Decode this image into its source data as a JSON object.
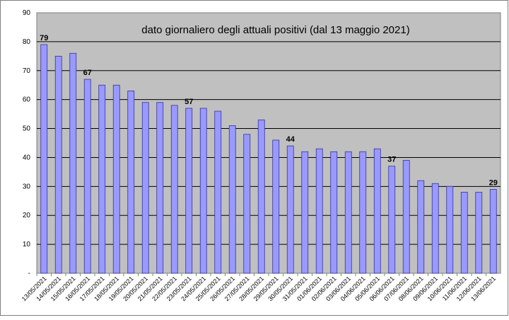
{
  "chart_data": {
    "type": "bar",
    "title": "dato giornaliero degli attuali positivi (dal 13 maggio 2021)",
    "xlabel": "",
    "ylabel": "",
    "ylim": [
      0,
      90
    ],
    "yticks": [
      "-",
      "10",
      "20",
      "30",
      "40",
      "50",
      "60",
      "70",
      "80",
      "90"
    ],
    "grid": true,
    "legend": "none",
    "colors": {
      "bar_fill": "#9999ff",
      "bar_stroke": "#333399",
      "plot_bg": "#c0c0c0",
      "grid": "#000000"
    },
    "categories": [
      "13/05/2021",
      "14/05/2021",
      "15/05/2021",
      "16/05/2021",
      "17/05/2021",
      "18/05/2021",
      "19/05/2021",
      "20/05/2021",
      "21/05/2021",
      "22/05/2021",
      "23/05/2021",
      "24/05/2021",
      "25/05/2021",
      "26/05/2021",
      "27/05/2021",
      "28/05/2021",
      "29/05/2021",
      "30/05/2021",
      "31/05/2021",
      "01/06/2021",
      "02/06/2021",
      "03/06/2021",
      "04/06/2021",
      "05/06/2021",
      "06/06/2021",
      "07/06/2021",
      "08/06/2021",
      "09/06/2021",
      "10/06/2021",
      "11/06/2021",
      "12/06/2021",
      "13/06/2021"
    ],
    "values": [
      79,
      75,
      76,
      67,
      65,
      65,
      63,
      59,
      59,
      58,
      57,
      57,
      56,
      51,
      48,
      53,
      46,
      44,
      42,
      43,
      42,
      42,
      42,
      43,
      37,
      39,
      32,
      31,
      30,
      28,
      28,
      29
    ],
    "data_labels": [
      {
        "index": 0,
        "text": "79"
      },
      {
        "index": 3,
        "text": "67"
      },
      {
        "index": 10,
        "text": "57"
      },
      {
        "index": 17,
        "text": "44"
      },
      {
        "index": 24,
        "text": "37"
      },
      {
        "index": 31,
        "text": "29"
      }
    ]
  }
}
